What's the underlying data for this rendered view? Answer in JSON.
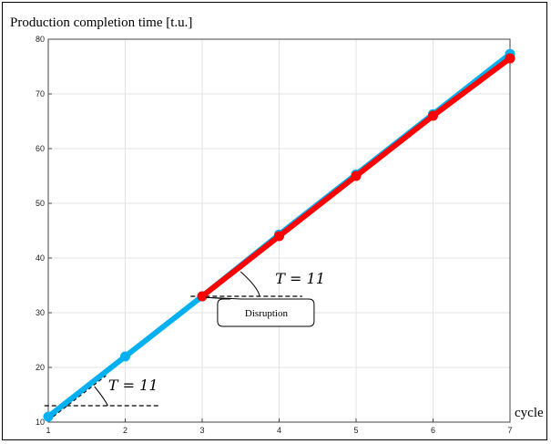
{
  "chart_data": {
    "type": "line",
    "ylabel": "Production completion time [t.u.]",
    "xlabel": "cycle",
    "xlim": [
      1,
      7
    ],
    "ylim": [
      10,
      80
    ],
    "x_ticks": [
      1,
      2,
      3,
      4,
      5,
      6,
      7
    ],
    "y_ticks": [
      10,
      20,
      30,
      40,
      50,
      60,
      70,
      80
    ],
    "grid": true,
    "series": [
      {
        "color": "#00b0f0",
        "x": [
          1,
          2,
          3,
          4,
          5,
          6,
          7
        ],
        "values": [
          11,
          22,
          33,
          44.3,
          55.3,
          66.3,
          77.3
        ]
      },
      {
        "color": "#ff0000",
        "x": [
          3,
          4,
          5,
          6,
          7
        ],
        "values": [
          33,
          44,
          55,
          66,
          76.5
        ]
      }
    ],
    "annotations": [
      {
        "text": "T = 11",
        "at_x": 1.75,
        "at_y": 13
      },
      {
        "text": "T = 11",
        "at_x": 3.95,
        "at_y": 33
      },
      {
        "text": "Disruption",
        "at_x": 3.5,
        "at_y": 30.5
      }
    ]
  }
}
